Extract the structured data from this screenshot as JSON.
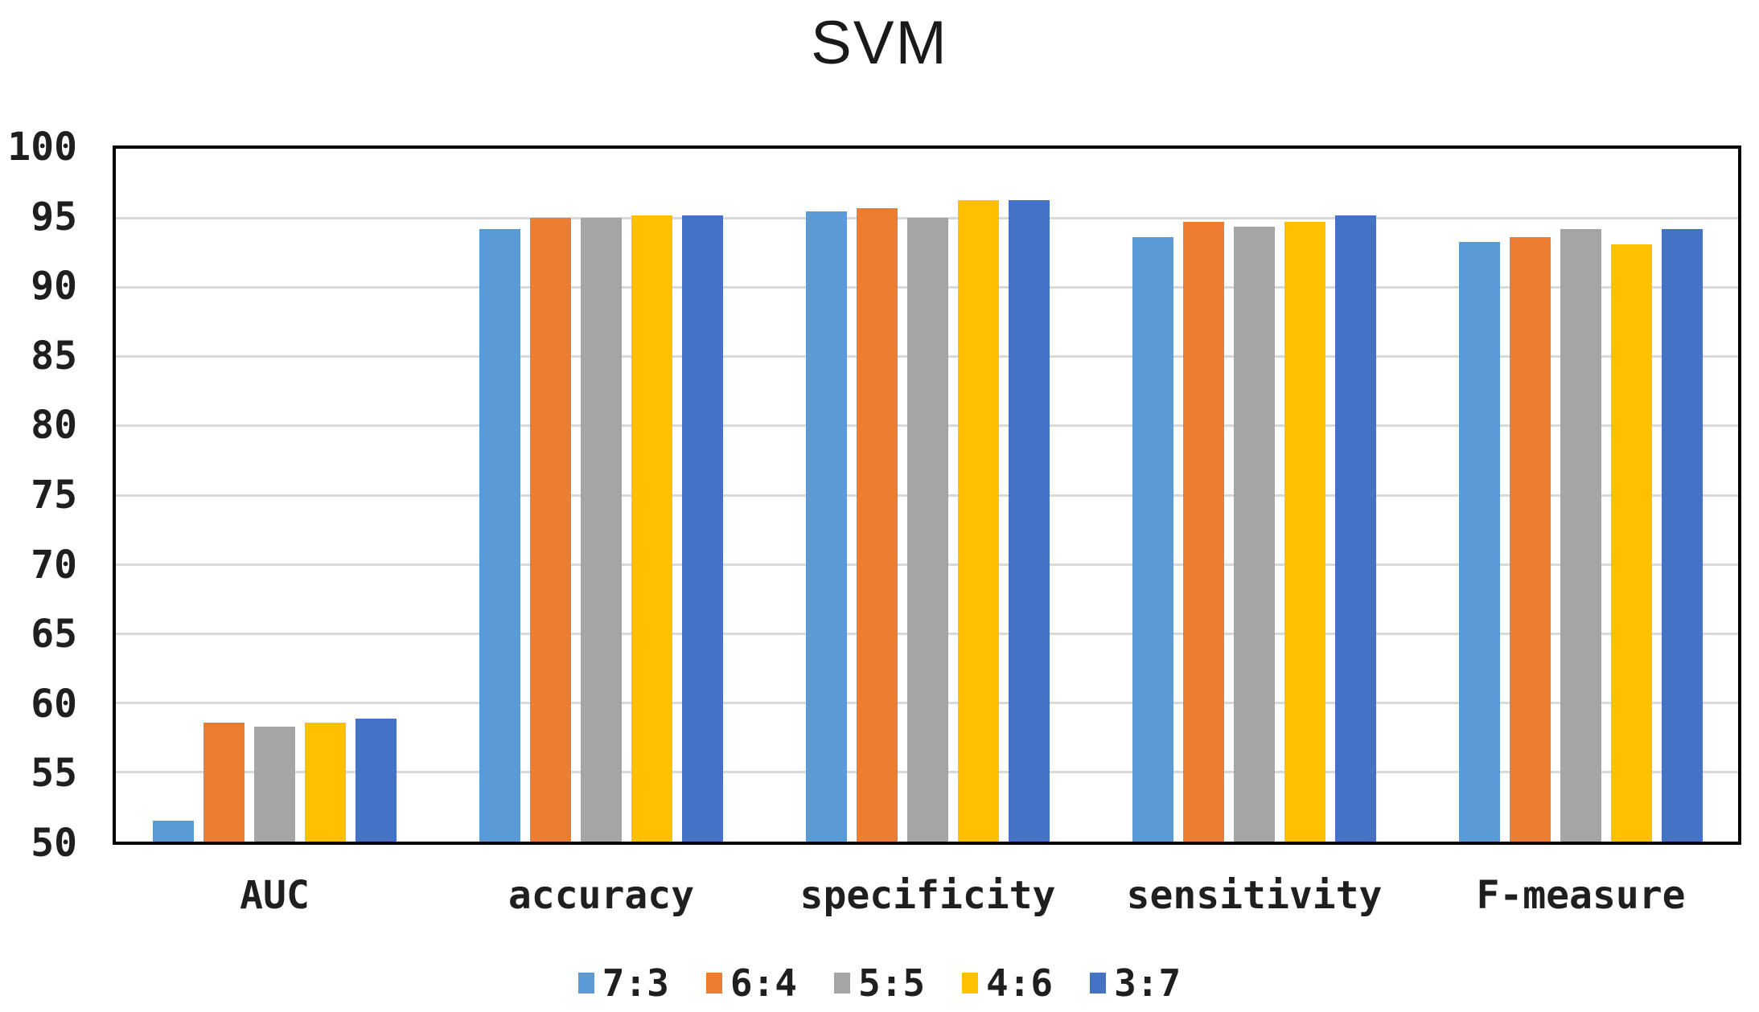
{
  "chart_data": {
    "type": "bar",
    "title": "SVM",
    "categories": [
      "AUC",
      "accuracy",
      "specificity",
      "sensitivity",
      "F-measure"
    ],
    "series": [
      {
        "name": "7:3",
        "color": "#5B9BD5",
        "values": [
          51.5,
          94.2,
          95.5,
          93.6,
          93.3
        ]
      },
      {
        "name": "6:4",
        "color": "#ED7D31",
        "values": [
          58.6,
          95.0,
          95.7,
          94.7,
          93.6
        ]
      },
      {
        "name": "5:5",
        "color": "#A5A5A5",
        "values": [
          58.3,
          95.0,
          95.0,
          94.4,
          94.2
        ]
      },
      {
        "name": "4:6",
        "color": "#FFC000",
        "values": [
          58.6,
          95.2,
          96.3,
          94.7,
          93.1
        ]
      },
      {
        "name": "3:7",
        "color": "#4472C4",
        "values": [
          58.9,
          95.2,
          96.3,
          95.2,
          94.2
        ]
      }
    ],
    "ylim": [
      50,
      100
    ],
    "ytick_step": 5,
    "ytick_labels": [
      "100",
      "95",
      "90",
      "85",
      "80",
      "75",
      "70",
      "65",
      "60",
      "55",
      "50"
    ],
    "xlabel": "",
    "ylabel": "",
    "grid": true,
    "legend_position": "bottom",
    "gridline_color": "#D9D9D9",
    "axis_color": "#000000",
    "text_color": "#1f1f1f"
  }
}
